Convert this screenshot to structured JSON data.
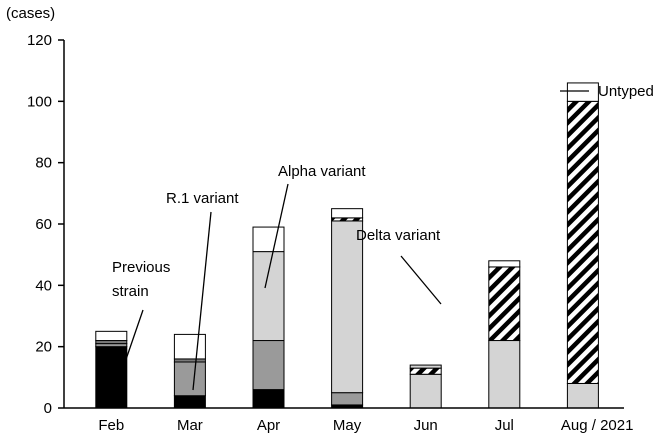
{
  "chart_data": {
    "type": "bar",
    "stacked": true,
    "ylabel": "(cases)",
    "ylim": [
      0,
      120
    ],
    "yticks": [
      0,
      20,
      40,
      60,
      80,
      100,
      120
    ],
    "categories": [
      "Feb",
      "Mar",
      "Apr",
      "May",
      "Jun",
      "Jul",
      "Aug / 2021"
    ],
    "series": [
      {
        "key": "previous",
        "fill": "#000000",
        "pattern": "none",
        "values": [
          20,
          4,
          6,
          1,
          0,
          0,
          0
        ]
      },
      {
        "key": "r1",
        "fill": "#9a9a9a",
        "pattern": "none",
        "values": [
          1,
          11,
          16,
          4,
          0,
          0,
          0
        ]
      },
      {
        "key": "alpha",
        "fill": "#d4d4d4",
        "pattern": "none",
        "values": [
          0,
          0,
          29,
          56,
          11,
          22,
          8
        ]
      },
      {
        "key": "mixed",
        "fill": "#7a7a7a",
        "pattern": "none",
        "values": [
          1,
          1,
          0,
          0,
          0,
          0,
          0
        ]
      },
      {
        "key": "delta",
        "fill": "#ffffff",
        "pattern": "hatch",
        "values": [
          0,
          0,
          0,
          1,
          2,
          24,
          92
        ]
      },
      {
        "key": "alpha2",
        "fill": "#d4d4d4",
        "pattern": "none",
        "values": [
          0,
          0,
          0,
          0,
          1,
          0,
          0
        ]
      },
      {
        "key": "untyped",
        "fill": "#ffffff",
        "pattern": "none",
        "values": [
          3,
          8,
          8,
          3,
          0,
          2,
          6
        ]
      }
    ],
    "annotations": [
      {
        "text_lines": [
          "Previous",
          "strain"
        ],
        "target": "Feb"
      },
      {
        "text_lines": [
          "R.1 variant"
        ],
        "target": "Mar"
      },
      {
        "text_lines": [
          "Alpha variant"
        ],
        "target": "Apr"
      },
      {
        "text_lines": [
          "Delta variant"
        ],
        "target": "Jul"
      },
      {
        "text_lines": [
          "Untyped"
        ],
        "target": "Aug / 2021"
      }
    ]
  }
}
